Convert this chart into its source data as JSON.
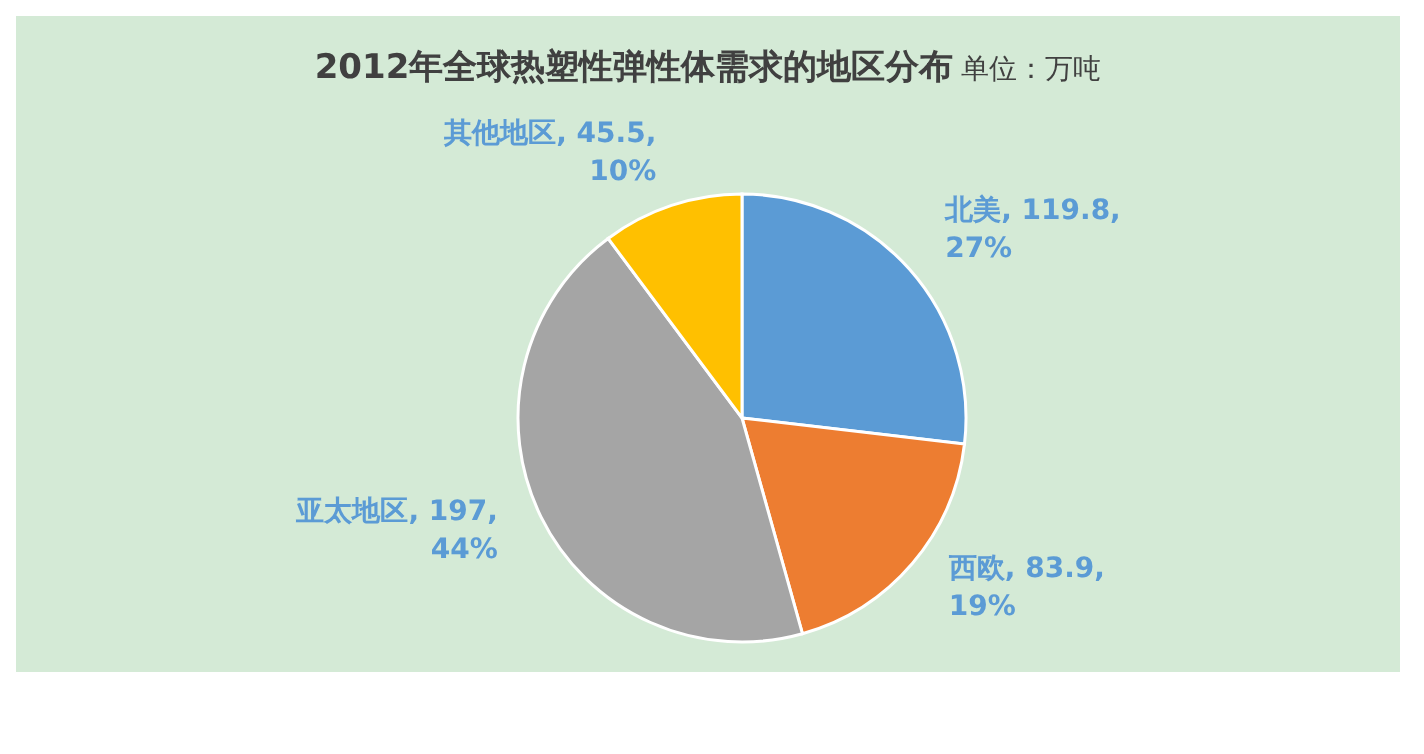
{
  "chart_data": {
    "type": "pie",
    "title": "2012年全球热塑性弹性体需求的地区分布",
    "subtitle": "单位：万吨",
    "categories": [
      "北美",
      "西欧",
      "亚太地区",
      "其他地区"
    ],
    "values": [
      119.8,
      83.9,
      197,
      45.5
    ],
    "colors": [
      "#5b9bd5",
      "#ed7d31",
      "#a5a5a5",
      "#ffc000"
    ],
    "value_labels": [
      "119.8, 27%",
      "83.9, 19%",
      "197, 44%",
      "45.5, 10%"
    ],
    "legend": false
  }
}
